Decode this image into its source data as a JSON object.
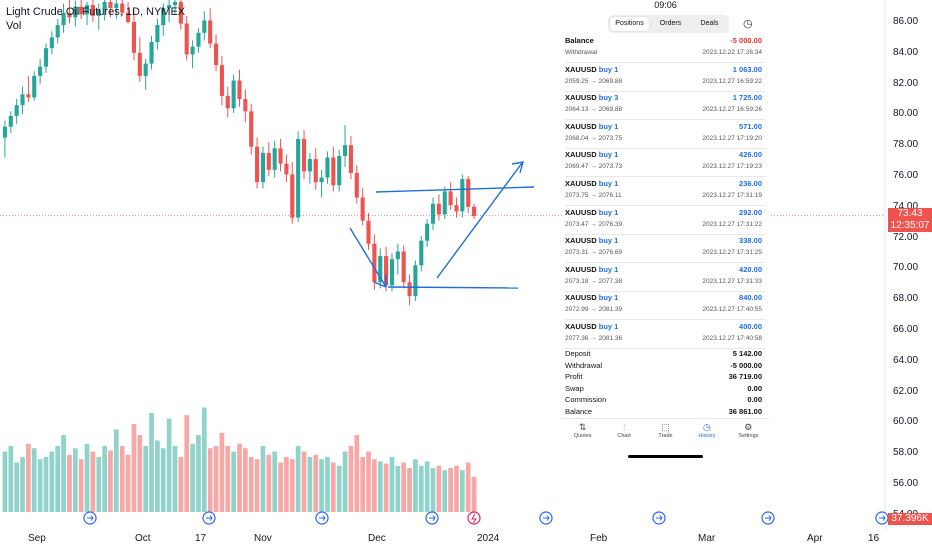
{
  "chart": {
    "title": "Light Crude Oil Futures, 1D, NYMEX",
    "volume_label": "Vol",
    "last_price": "73.43",
    "countdown": "12:35:07",
    "volume_value": "37.396K",
    "up_color": "#26a69a",
    "down_color": "#ef5350",
    "price_axis": [
      "86.00",
      "84.00",
      "82.00",
      "80.00",
      "78.00",
      "76.00",
      "74.00",
      "72.00",
      "70.00",
      "68.00",
      "66.00",
      "64.00",
      "62.00",
      "60.00",
      "58.00",
      "56.00",
      "54.00"
    ],
    "time_axis": [
      "Sep",
      "Oct",
      "17",
      "Nov",
      "Dec",
      "2024",
      "Feb",
      "Mar",
      "Apr",
      "16"
    ]
  },
  "chart_data": {
    "type": "candlestick",
    "title": "Light Crude Oil Futures, 1D, NYMEX",
    "ylim": [
      54,
      87
    ],
    "last": 73.43,
    "candles": [
      [
        78.5,
        79.6,
        77.2,
        79.2
      ],
      [
        79.2,
        80.2,
        78.8,
        79.9
      ],
      [
        79.9,
        81.0,
        79.4,
        80.6
      ],
      [
        80.6,
        81.8,
        80.0,
        81.3
      ],
      [
        81.3,
        82.5,
        80.8,
        81.1
      ],
      [
        81.1,
        82.8,
        80.9,
        82.5
      ],
      [
        82.5,
        83.6,
        82.0,
        83.1
      ],
      [
        83.1,
        84.6,
        82.7,
        84.3
      ],
      [
        84.3,
        85.4,
        83.9,
        85.0
      ],
      [
        85.0,
        86.2,
        84.6,
        85.8
      ],
      [
        85.8,
        87.2,
        85.3,
        86.6
      ],
      [
        86.6,
        87.5,
        85.9,
        86.3
      ],
      [
        86.3,
        87.4,
        85.7,
        87.0
      ],
      [
        87.0,
        87.6,
        86.2,
        86.5
      ],
      [
        86.5,
        87.3,
        85.8,
        87.1
      ],
      [
        87.1,
        87.5,
        86.0,
        86.4
      ],
      [
        86.4,
        87.2,
        85.5,
        86.8
      ],
      [
        86.8,
        87.6,
        86.1,
        87.3
      ],
      [
        87.3,
        87.7,
        86.3,
        86.9
      ],
      [
        86.9,
        87.5,
        86.2,
        87.2
      ],
      [
        87.2,
        87.6,
        86.4,
        86.6
      ],
      [
        86.6,
        87.3,
        85.9,
        86.0
      ],
      [
        86.0,
        86.8,
        83.5,
        84.0
      ],
      [
        84.0,
        85.0,
        82.1,
        82.5
      ],
      [
        82.5,
        83.6,
        81.6,
        83.3
      ],
      [
        83.3,
        85.1,
        82.9,
        84.7
      ],
      [
        84.7,
        86.2,
        84.2,
        85.8
      ],
      [
        85.8,
        87.2,
        85.1,
        86.9
      ],
      [
        86.9,
        87.6,
        86.0,
        87.1
      ],
      [
        87.1,
        87.7,
        86.5,
        87.3
      ],
      [
        87.3,
        87.6,
        85.5,
        85.9
      ],
      [
        85.9,
        86.4,
        83.5,
        83.9
      ],
      [
        83.9,
        84.8,
        83.0,
        84.4
      ],
      [
        84.4,
        85.6,
        84.0,
        85.3
      ],
      [
        85.3,
        86.7,
        84.8,
        86.1
      ],
      [
        86.1,
        86.9,
        84.3,
        84.6
      ],
      [
        84.6,
        85.2,
        82.8,
        83.2
      ],
      [
        83.2,
        83.8,
        80.6,
        81.2
      ],
      [
        81.2,
        81.8,
        79.8,
        80.4
      ],
      [
        80.4,
        82.6,
        80.1,
        82.2
      ],
      [
        82.2,
        82.9,
        80.5,
        81.0
      ],
      [
        81.0,
        81.6,
        79.5,
        80.2
      ],
      [
        80.2,
        80.7,
        77.4,
        77.9
      ],
      [
        77.9,
        78.5,
        75.2,
        75.6
      ],
      [
        75.6,
        77.9,
        75.2,
        77.5
      ],
      [
        77.5,
        78.2,
        76.0,
        76.4
      ],
      [
        76.4,
        78.3,
        75.9,
        77.8
      ],
      [
        77.8,
        78.4,
        76.3,
        76.8
      ],
      [
        76.8,
        77.4,
        75.6,
        76.1
      ],
      [
        76.1,
        76.9,
        72.9,
        73.3
      ],
      [
        73.3,
        78.9,
        73.0,
        78.4
      ],
      [
        78.4,
        79.0,
        75.8,
        76.3
      ],
      [
        76.3,
        77.5,
        75.5,
        77.1
      ],
      [
        77.1,
        77.8,
        75.1,
        75.6
      ],
      [
        75.6,
        76.4,
        74.6,
        75.9
      ],
      [
        75.9,
        77.6,
        75.5,
        77.2
      ],
      [
        77.2,
        77.9,
        75.0,
        75.4
      ],
      [
        75.4,
        77.7,
        75.0,
        77.3
      ],
      [
        77.3,
        79.3,
        76.6,
        78.0
      ],
      [
        78.0,
        78.6,
        75.8,
        76.2
      ],
      [
        76.2,
        76.7,
        74.2,
        74.6
      ],
      [
        74.6,
        75.2,
        72.8,
        73.1
      ],
      [
        73.1,
        73.6,
        71.2,
        71.6
      ],
      [
        71.6,
        72.2,
        68.6,
        69.1
      ],
      [
        69.1,
        71.3,
        68.7,
        70.8
      ],
      [
        70.8,
        71.4,
        68.5,
        68.9
      ],
      [
        68.9,
        71.0,
        68.5,
        70.6
      ],
      [
        70.6,
        71.6,
        69.6,
        71.1
      ],
      [
        71.1,
        71.5,
        68.7,
        69.1
      ],
      [
        69.1,
        69.6,
        67.6,
        68.2
      ],
      [
        68.2,
        70.5,
        67.9,
        70.2
      ],
      [
        70.2,
        72.1,
        69.8,
        71.8
      ],
      [
        71.8,
        73.2,
        71.4,
        72.9
      ],
      [
        72.9,
        74.6,
        72.5,
        74.2
      ],
      [
        74.2,
        74.8,
        73.1,
        73.5
      ],
      [
        73.5,
        75.3,
        73.2,
        75.0
      ],
      [
        75.0,
        75.6,
        73.8,
        74.1
      ],
      [
        74.1,
        74.6,
        73.3,
        73.7
      ],
      [
        73.7,
        76.1,
        73.3,
        75.8
      ],
      [
        75.8,
        76.0,
        73.6,
        74.0
      ],
      [
        74.0,
        74.2,
        73.2,
        73.4
      ]
    ],
    "volumes": [
      0.55,
      0.6,
      0.45,
      0.5,
      0.62,
      0.58,
      0.48,
      0.5,
      0.55,
      0.6,
      0.7,
      0.52,
      0.58,
      0.48,
      0.62,
      0.55,
      0.5,
      0.6,
      0.56,
      0.75,
      0.6,
      0.52,
      0.8,
      0.7,
      0.6,
      0.9,
      0.65,
      0.58,
      0.85,
      0.6,
      0.5,
      0.88,
      0.62,
      0.7,
      0.95,
      0.58,
      0.6,
      0.72,
      0.6,
      0.55,
      0.62,
      0.58,
      0.5,
      0.48,
      0.6,
      0.52,
      0.55,
      0.45,
      0.5,
      0.48,
      0.6,
      0.55,
      0.5,
      0.52,
      0.48,
      0.5,
      0.45,
      0.42,
      0.55,
      0.6,
      0.7,
      0.5,
      0.55,
      0.48,
      0.46,
      0.44,
      0.5,
      0.42,
      0.45,
      0.4,
      0.48,
      0.42,
      0.46,
      0.4,
      0.42,
      0.38,
      0.4,
      0.42,
      0.38,
      0.45,
      0.32
    ],
    "drawings": "Hand-drawn blue trend lines (wedge pattern) with arrow pointing up-right"
  },
  "panel": {
    "clock": "09:06",
    "tabs": [
      {
        "label": "Positions",
        "active": true
      },
      {
        "label": "Orders",
        "active": false
      },
      {
        "label": "Deals",
        "active": false
      }
    ],
    "history_icon": "clock-icon",
    "rows": [
      {
        "symbol": "Balance",
        "dir": "",
        "amount": "-5 000.00",
        "neg": true,
        "sub": "Withdrawal",
        "time": "2023.12.22 17:26:34"
      },
      {
        "symbol": "XAUUSD",
        "dir": "buy 1",
        "amount": "1 063.00",
        "neg": false,
        "sub": "2059.25 → 2069.88",
        "time": "2023.12.27 16:59:22"
      },
      {
        "symbol": "XAUUSD",
        "dir": "buy 3",
        "amount": "1 725.00",
        "neg": false,
        "sub": "2064.13 → 2069.88",
        "time": "2023.12.27 16:59:26"
      },
      {
        "symbol": "XAUUSD",
        "dir": "buy 1",
        "amount": "571.00",
        "neg": false,
        "sub": "2068.04 → 2073.75",
        "time": "2023.12.27 17:19:20"
      },
      {
        "symbol": "XAUUSD",
        "dir": "buy 1",
        "amount": "426.00",
        "neg": false,
        "sub": "2069.47 → 2073.73",
        "time": "2023.12.27 17:19:23"
      },
      {
        "symbol": "XAUUSD",
        "dir": "buy 1",
        "amount": "236.00",
        "neg": false,
        "sub": "2073.75 → 2076.11",
        "time": "2023.12.27 17:31:19"
      },
      {
        "symbol": "XAUUSD",
        "dir": "buy 1",
        "amount": "292.00",
        "neg": false,
        "sub": "2073.47 → 2076.39",
        "time": "2023.12.27 17:31:22"
      },
      {
        "symbol": "XAUUSD",
        "dir": "buy 1",
        "amount": "338.00",
        "neg": false,
        "sub": "2073.31 → 2076.69",
        "time": "2023.12.27 17:31:25"
      },
      {
        "symbol": "XAUUSD",
        "dir": "buy 1",
        "amount": "420.00",
        "neg": false,
        "sub": "2073.18 → 2077.38",
        "time": "2023.12.27 17:31:33"
      },
      {
        "symbol": "XAUUSD",
        "dir": "buy 1",
        "amount": "840.00",
        "neg": false,
        "sub": "2072.99 → 2081.39",
        "time": "2023.12.27 17:40:55"
      },
      {
        "symbol": "XAUUSD",
        "dir": "buy 1",
        "amount": "400.00",
        "neg": false,
        "sub": "2077.36 → 2081.36",
        "time": "2023.12.27 17:40:58"
      }
    ],
    "summary": [
      {
        "label": "Deposit",
        "value": "5 142.00"
      },
      {
        "label": "Withdrawal",
        "value": "-5 000.00"
      },
      {
        "label": "Profit",
        "value": "36 719.00"
      },
      {
        "label": "Swap",
        "value": "0.00"
      },
      {
        "label": "Commission",
        "value": "0.00"
      },
      {
        "label": "Balance",
        "value": "36 861.00"
      }
    ],
    "nav": [
      {
        "label": "Quotes",
        "icon": "quotes-icon",
        "glyph": "⇅",
        "active": false
      },
      {
        "label": "Chart",
        "icon": "chart-icon",
        "glyph": "⫶",
        "active": false
      },
      {
        "label": "Trade",
        "icon": "trade-icon",
        "glyph": "⬚",
        "active": false
      },
      {
        "label": "History",
        "icon": "history-icon",
        "glyph": "◷",
        "active": true
      },
      {
        "label": "Settings",
        "icon": "settings-icon",
        "glyph": "⚙",
        "active": false
      }
    ]
  }
}
